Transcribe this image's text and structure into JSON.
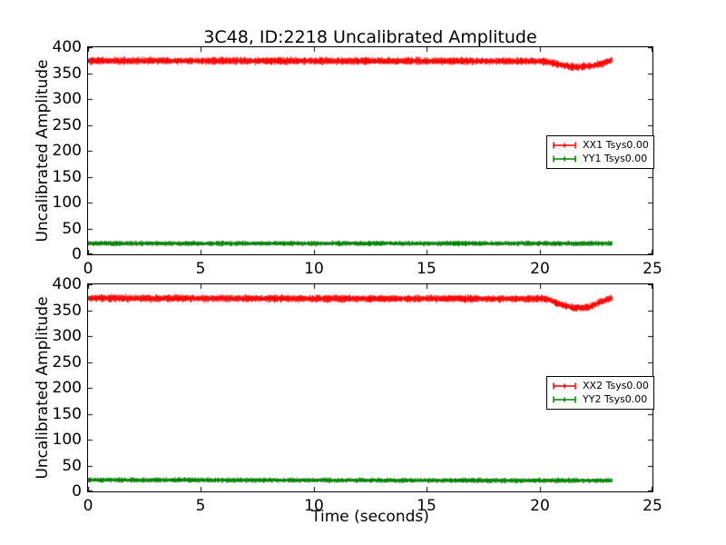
{
  "figure": {
    "title": "3C48, ID:2218 Uncalibrated Amplitude",
    "background_color": "#ffffff",
    "axis_color": "#000000"
  },
  "chart_data": [
    {
      "type": "line",
      "subplot": "top",
      "title": "3C48, ID:2218 Uncalibrated Amplitude",
      "xlabel": "",
      "ylabel": "Uncalibrated Amplitude",
      "xlim": [
        0,
        25
      ],
      "ylim": [
        0,
        400
      ],
      "xticks": [
        0,
        5,
        10,
        15,
        20,
        25
      ],
      "yticks": [
        0,
        50,
        100,
        150,
        200,
        250,
        300,
        350,
        400
      ],
      "grid": false,
      "legend": {
        "loc": "center right"
      },
      "series": [
        {
          "name": "XX1 Tsys0.00",
          "color": "#ff0000",
          "style": "errorbar-band",
          "x_start": 0,
          "x_end": 23.2,
          "noise_halfwidth": 9,
          "mean_profile": [
            [
              0,
              374
            ],
            [
              20.2,
              373
            ],
            [
              20.8,
              367
            ],
            [
              21.4,
              362
            ],
            [
              22.2,
              363
            ],
            [
              22.7,
              368
            ],
            [
              23.0,
              372
            ],
            [
              23.2,
              375
            ]
          ]
        },
        {
          "name": "YY1 Tsys0.00",
          "color": "#008000",
          "style": "errorbar-band",
          "x_start": 0,
          "x_end": 23.2,
          "noise_halfwidth": 6,
          "mean_profile": [
            [
              0,
              21
            ],
            [
              23.2,
              21
            ]
          ]
        }
      ]
    },
    {
      "type": "line",
      "subplot": "bottom",
      "title": "",
      "xlabel": "Time (seconds)",
      "ylabel": "Uncalibrated Amplitude",
      "xlim": [
        0,
        25
      ],
      "ylim": [
        0,
        400
      ],
      "xticks": [
        0,
        5,
        10,
        15,
        20,
        25
      ],
      "yticks": [
        0,
        50,
        100,
        150,
        200,
        250,
        300,
        350,
        400
      ],
      "grid": false,
      "legend": {
        "loc": "center right"
      },
      "series": [
        {
          "name": "XX2 Tsys0.00",
          "color": "#ff0000",
          "style": "errorbar-band",
          "x_start": 0,
          "x_end": 23.2,
          "noise_halfwidth": 9,
          "mean_profile": [
            [
              0,
              373
            ],
            [
              20.3,
              372
            ],
            [
              20.9,
              362
            ],
            [
              21.5,
              354
            ],
            [
              22.2,
              356
            ],
            [
              22.7,
              366
            ],
            [
              23.0,
              371
            ],
            [
              23.2,
              374
            ]
          ]
        },
        {
          "name": "YY2 Tsys0.00",
          "color": "#008000",
          "style": "errorbar-band",
          "x_start": 0,
          "x_end": 23.2,
          "noise_halfwidth": 6,
          "mean_profile": [
            [
              0,
              22
            ],
            [
              21,
              21
            ],
            [
              23.2,
              21
            ]
          ]
        }
      ]
    }
  ]
}
